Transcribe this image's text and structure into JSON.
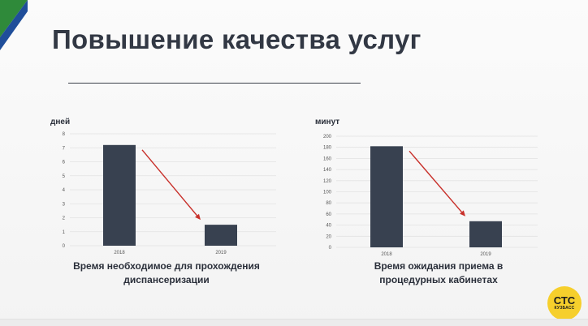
{
  "slide": {
    "title": "Повышение качества услуг"
  },
  "badge": {
    "main": "СТС",
    "sub": "КУЗБАСС",
    "color": "#f6cf2c"
  },
  "colors": {
    "bar": "#384150",
    "arrow": "#c8302a",
    "logo_green": "#2f8a3a",
    "logo_blue": "#1f4e9a"
  },
  "chart_data": [
    {
      "type": "bar",
      "ylabel": "дней",
      "categories": [
        "2018",
        "2019"
      ],
      "values": [
        7.2,
        1.5
      ],
      "ylim": [
        0,
        8
      ],
      "yticks": [
        0,
        1,
        2,
        3,
        4,
        5,
        6,
        7,
        8
      ],
      "grid": true,
      "caption": [
        "Время необходимое для прохождения",
        "диспансеризации"
      ],
      "annotation": "arrow"
    },
    {
      "type": "bar",
      "ylabel": "минут",
      "categories": [
        "2018",
        "2019"
      ],
      "values": [
        182,
        47
      ],
      "ylim": [
        0,
        200
      ],
      "yticks": [
        0,
        20,
        40,
        60,
        80,
        100,
        120,
        140,
        160,
        180,
        200
      ],
      "grid": true,
      "caption": [
        "Время ожидания приема в",
        "процедурных кабинетах"
      ],
      "annotation": "arrow"
    }
  ]
}
